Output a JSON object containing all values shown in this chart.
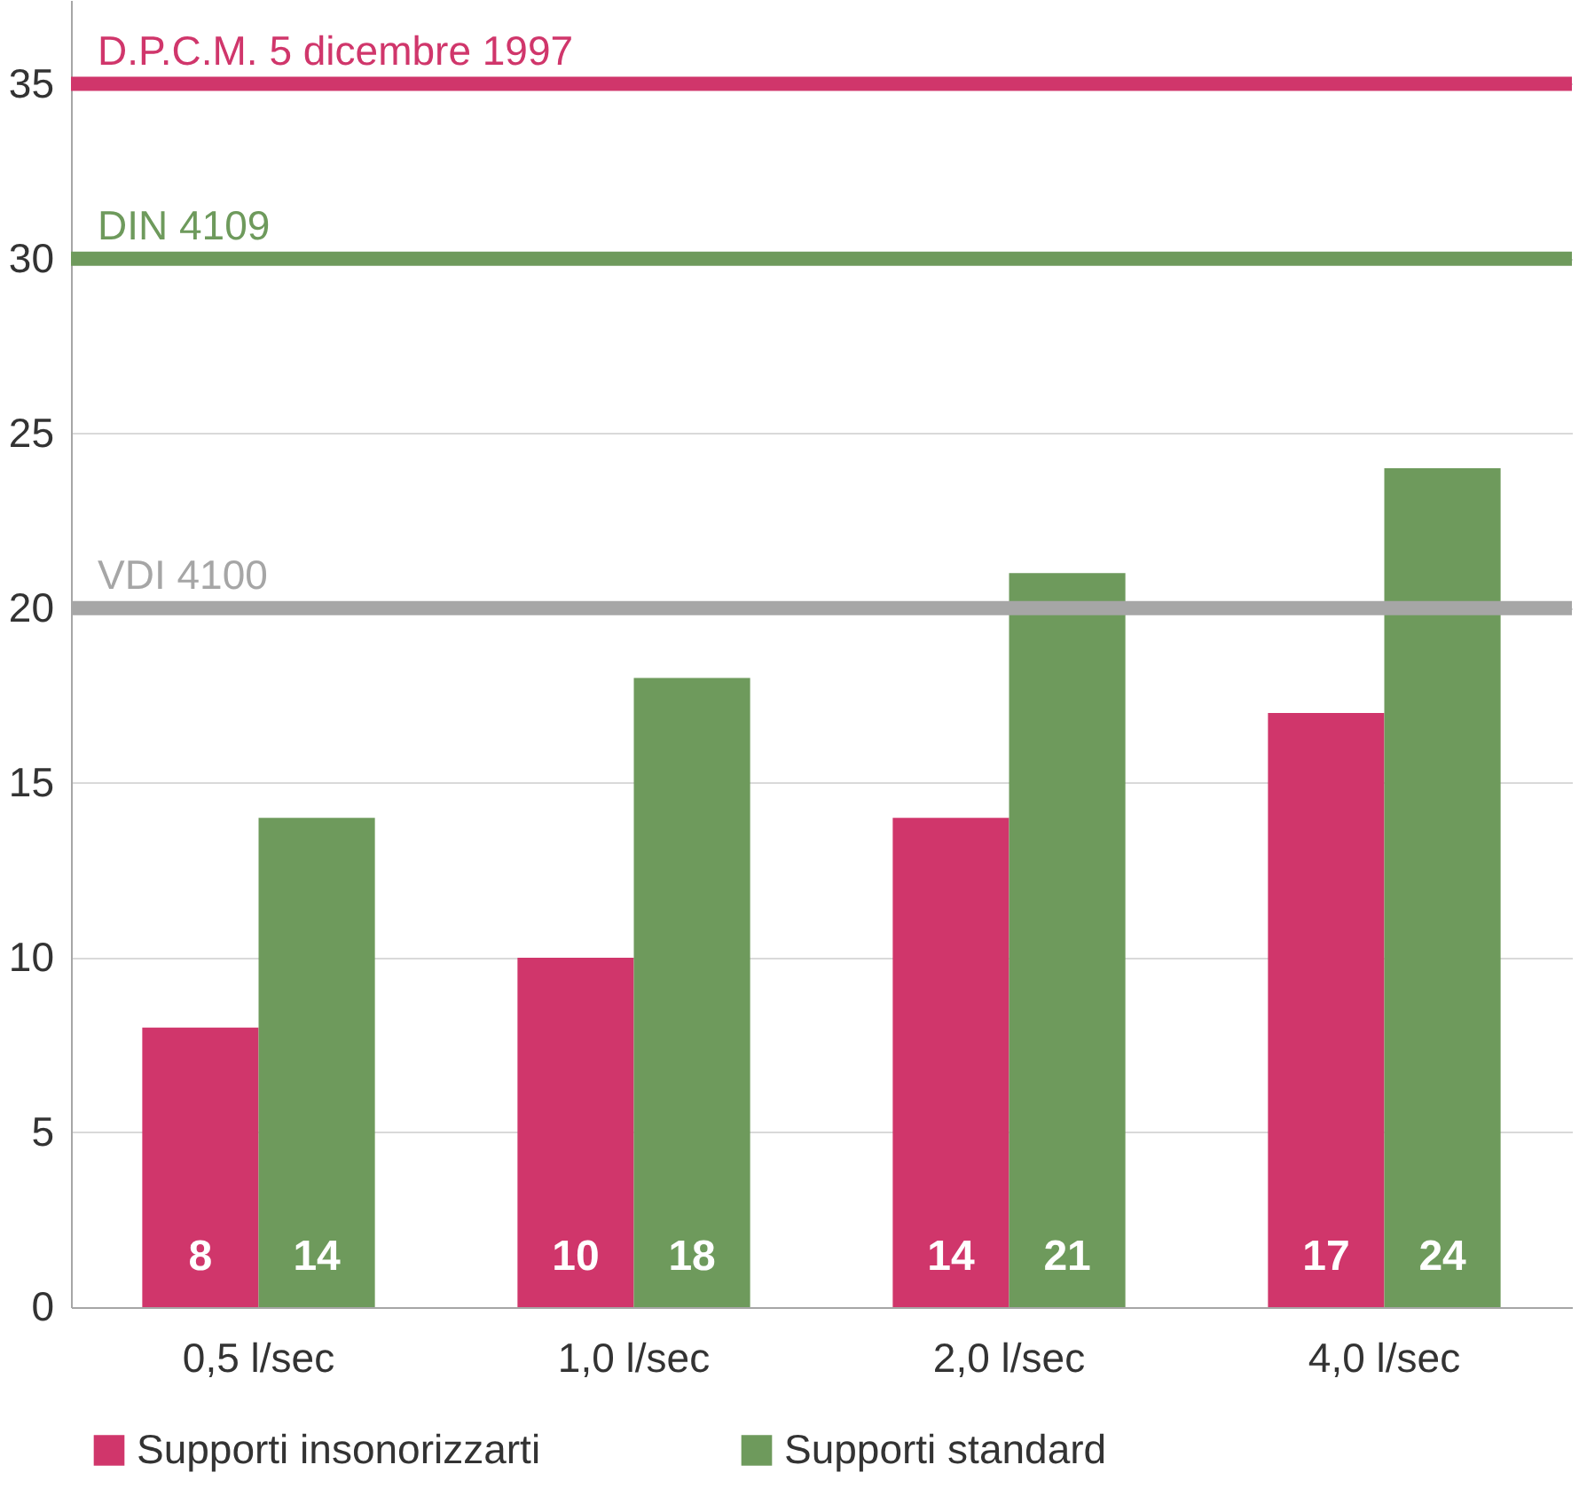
{
  "chart_data": {
    "type": "bar",
    "categories": [
      "0,5 l/sec",
      "1,0 l/sec",
      "2,0 l/sec",
      "4,0 l/sec"
    ],
    "series": [
      {
        "name": "Supporti insonorizzarti",
        "color": "#d0366b",
        "values": [
          8,
          10,
          14,
          17
        ]
      },
      {
        "name": "Supporti standard",
        "color": "#6e9a5c",
        "values": [
          14,
          18,
          21,
          24
        ]
      }
    ],
    "ylim": [
      0,
      37.4
    ],
    "yticks": [
      0,
      5,
      10,
      15,
      20,
      25,
      30,
      35
    ],
    "grid": "y",
    "legend": "bottom",
    "data_labels": true,
    "ref_lines": [
      {
        "axis": "y",
        "value": 35,
        "label": "D.P.C.M. 5 dicembre 1997",
        "color": "#d0366b"
      },
      {
        "axis": "y",
        "value": 30,
        "label": "DIN 4109",
        "color": "#6e9a5c"
      },
      {
        "axis": "y",
        "value": 20,
        "label": "VDI 4100",
        "color": "#a6a6a6"
      }
    ]
  }
}
